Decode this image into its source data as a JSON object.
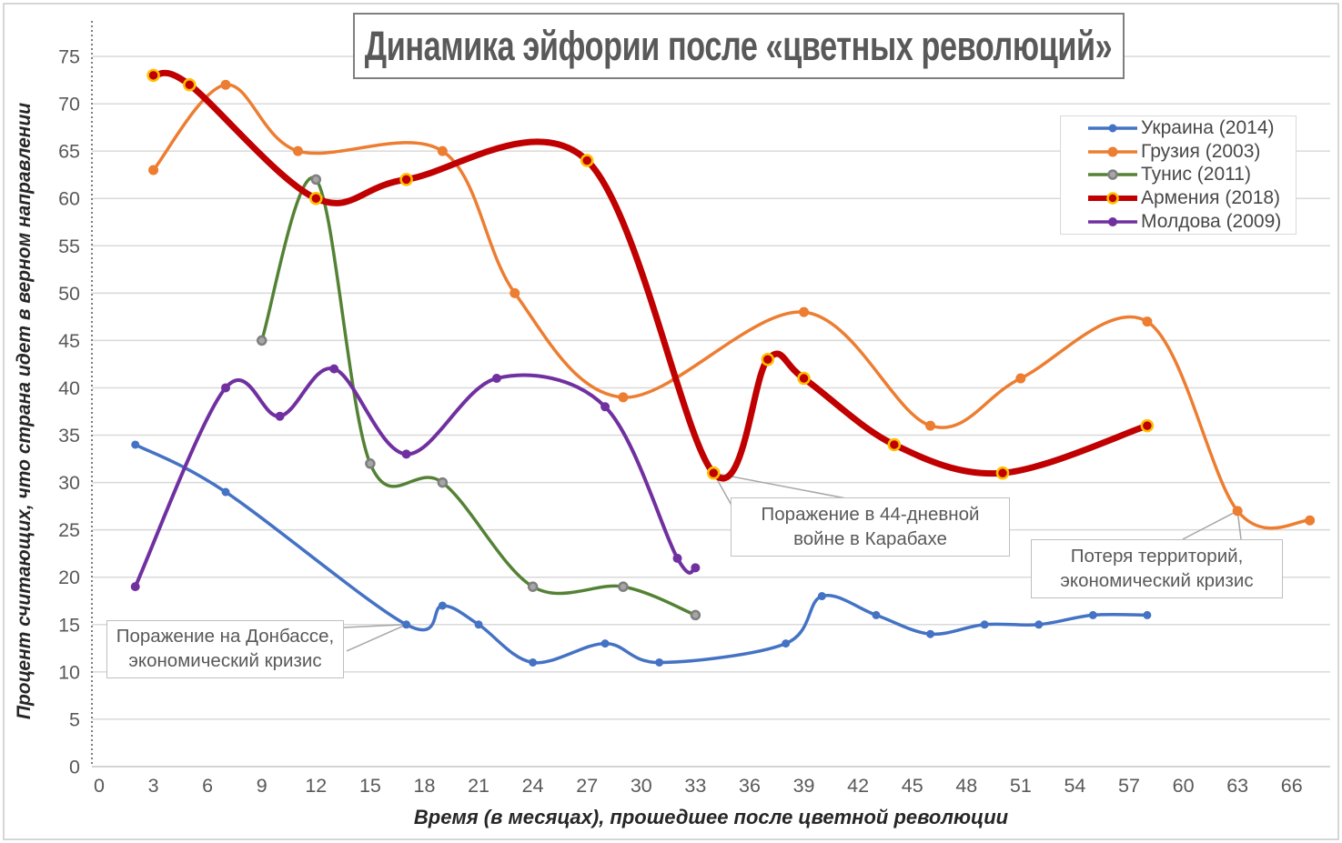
{
  "chart_data": {
    "type": "line",
    "title": "Динамика эйфории после «цветных революций»",
    "xlabel": "Время (в месяцах), прошедшее после цветной революции",
    "ylabel": "Процент считающих, что страна идет в верном направлении",
    "xlim": [
      0,
      68
    ],
    "ylim": [
      0,
      75
    ],
    "x_ticks": [
      0,
      3,
      6,
      9,
      12,
      15,
      18,
      21,
      24,
      27,
      30,
      33,
      36,
      39,
      42,
      45,
      48,
      51,
      54,
      57,
      60,
      63,
      66
    ],
    "y_ticks": [
      0,
      5,
      10,
      15,
      20,
      25,
      30,
      35,
      40,
      45,
      50,
      55,
      60,
      65,
      70,
      75
    ],
    "grid": "horizontal",
    "grid_color": "#d9d9d9",
    "axis_line_color": "#c6c6c6",
    "tick_label_color": "#595959",
    "legend_position": "top-right",
    "series": [
      {
        "name": "Украина (2014)",
        "color": "#4472C4",
        "line_width": 3.5,
        "marker_fill": "#4472C4",
        "marker_stroke": "#4472C4",
        "marker_radius": 4,
        "points": [
          [
            2,
            34
          ],
          [
            7,
            29
          ],
          [
            17,
            15
          ],
          [
            19,
            17
          ],
          [
            21,
            15
          ],
          [
            24,
            11
          ],
          [
            28,
            13
          ],
          [
            31,
            11
          ],
          [
            38,
            13
          ],
          [
            40,
            18
          ],
          [
            43,
            16
          ],
          [
            46,
            14
          ],
          [
            49,
            15
          ],
          [
            52,
            15
          ],
          [
            55,
            16
          ],
          [
            58,
            16
          ]
        ]
      },
      {
        "name": "Грузия (2003)",
        "color": "#ED7D31",
        "line_width": 3.5,
        "marker_fill": "#ED7D31",
        "marker_stroke": "#ED7D31",
        "marker_radius": 5,
        "points": [
          [
            3,
            63
          ],
          [
            7,
            72
          ],
          [
            11,
            65
          ],
          [
            19,
            65
          ],
          [
            23,
            50
          ],
          [
            29,
            39
          ],
          [
            39,
            48
          ],
          [
            46,
            36
          ],
          [
            51,
            41
          ],
          [
            58,
            47
          ],
          [
            63,
            27
          ],
          [
            67,
            26
          ]
        ]
      },
      {
        "name": "Тунис (2011)",
        "color": "#548235",
        "line_width": 3.5,
        "marker_fill": "#A6A6A6",
        "marker_stroke": "#7F7F7F",
        "marker_radius": 4.5,
        "points": [
          [
            9,
            45
          ],
          [
            12,
            62
          ],
          [
            15,
            32
          ],
          [
            19,
            30
          ],
          [
            24,
            19
          ],
          [
            29,
            19
          ],
          [
            33,
            16
          ]
        ]
      },
      {
        "name": "Армения (2018)",
        "color": "#C00000",
        "line_width": 7,
        "marker_fill": "#C00000",
        "marker_stroke": "#FFC000",
        "marker_radius": 6,
        "points": [
          [
            3,
            73
          ],
          [
            5,
            72
          ],
          [
            12,
            60
          ],
          [
            17,
            62
          ],
          [
            27,
            64
          ],
          [
            34,
            31
          ],
          [
            37,
            43
          ],
          [
            39,
            41
          ],
          [
            44,
            34
          ],
          [
            50,
            31
          ],
          [
            58,
            36
          ]
        ]
      },
      {
        "name": "Молдова (2009)",
        "color": "#7030A0",
        "line_width": 4,
        "marker_fill": "#7030A0",
        "marker_stroke": "#7030A0",
        "marker_radius": 4.5,
        "points": [
          [
            2,
            19
          ],
          [
            7,
            40
          ],
          [
            10,
            37
          ],
          [
            13,
            42
          ],
          [
            17,
            33
          ],
          [
            22,
            41
          ],
          [
            28,
            38
          ],
          [
            32,
            22
          ],
          [
            33,
            21
          ]
        ]
      }
    ],
    "annotations": [
      {
        "text": "Поражение на Донбассе, экономический кризис",
        "target_series": "Украина (2014)",
        "target_point": [
          17,
          15
        ]
      },
      {
        "text": "Поражение в 44-дневной войне в Карабахе",
        "target_series": "Армения (2018)",
        "target_point": [
          34,
          31
        ]
      },
      {
        "text": "Потеря территорий, экономический кризис",
        "target_series": "Грузия (2003)",
        "target_point": [
          63,
          27
        ]
      }
    ]
  }
}
